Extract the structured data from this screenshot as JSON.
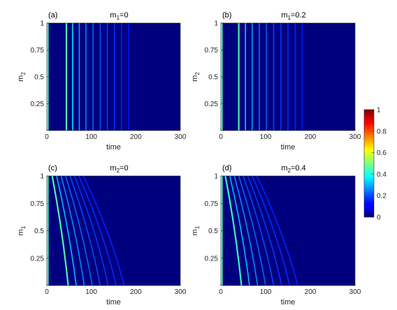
{
  "chart_data": [
    {
      "type": "heatmap",
      "panel": "(a)",
      "title_var": "m",
      "title_sub": "1",
      "title_val": "=0",
      "xlabel": "time",
      "ylabel_var": "m",
      "ylabel_sub": "2",
      "xlim": [
        0,
        300
      ],
      "ylim": [
        0,
        1
      ],
      "xticks": [
        "0",
        "100",
        "200",
        "300"
      ],
      "yticks": [
        "0.25",
        "0.5",
        "0.75",
        "1"
      ],
      "fronts": [
        {
          "t0": 44,
          "t1": 44,
          "amp": 0.34
        },
        {
          "t0": 58,
          "t1": 58,
          "amp": 0.24
        },
        {
          "t0": 73,
          "t1": 73,
          "amp": 0.18
        },
        {
          "t0": 88,
          "t1": 88,
          "amp": 0.14
        },
        {
          "t0": 104,
          "t1": 104,
          "amp": 0.11
        },
        {
          "t0": 120,
          "t1": 120,
          "amp": 0.09
        },
        {
          "t0": 136,
          "t1": 136,
          "amp": 0.07
        },
        {
          "t0": 152,
          "t1": 152,
          "amp": 0.05
        },
        {
          "t0": 168,
          "t1": 168,
          "amp": 0.04
        },
        {
          "t0": 184,
          "t1": 184,
          "amp": 0.03
        }
      ]
    },
    {
      "type": "heatmap",
      "panel": "(b)",
      "title_var": "m",
      "title_sub": "1",
      "title_val": "=0.2",
      "xlabel": "time",
      "ylabel_var": "m",
      "ylabel_sub": "2",
      "xlim": [
        0,
        300
      ],
      "ylim": [
        0,
        1
      ],
      "xticks": [
        "0",
        "100",
        "200",
        "300"
      ],
      "yticks": [
        "0.25",
        "0.5",
        "0.75",
        "1"
      ],
      "fronts": [
        {
          "t0": 40,
          "t1": 40,
          "amp": 0.34
        },
        {
          "t0": 55,
          "t1": 55,
          "amp": 0.22
        },
        {
          "t0": 70,
          "t1": 70,
          "amp": 0.17
        },
        {
          "t0": 86,
          "t1": 86,
          "amp": 0.13
        },
        {
          "t0": 102,
          "t1": 102,
          "amp": 0.1
        },
        {
          "t0": 118,
          "t1": 118,
          "amp": 0.08
        },
        {
          "t0": 134,
          "t1": 134,
          "amp": 0.06
        },
        {
          "t0": 150,
          "t1": 150,
          "amp": 0.05
        },
        {
          "t0": 166,
          "t1": 166,
          "amp": 0.04
        },
        {
          "t0": 182,
          "t1": 182,
          "amp": 0.03
        }
      ]
    },
    {
      "type": "heatmap",
      "panel": "(c)",
      "title_var": "m",
      "title_sub": "2",
      "title_val": "=0",
      "xlabel": "time",
      "ylabel_var": "m",
      "ylabel_sub": "1",
      "xlim": [
        0,
        300
      ],
      "ylim": [
        0,
        1
      ],
      "xticks": [
        "0",
        "100",
        "200",
        "300"
      ],
      "yticks": [
        "0.25",
        "0.5",
        "0.75",
        "1"
      ],
      "fronts": [
        {
          "t0": 48,
          "t1": 12,
          "amp": 0.34
        },
        {
          "t0": 66,
          "t1": 22,
          "amp": 0.2
        },
        {
          "t0": 84,
          "t1": 32,
          "amp": 0.15
        },
        {
          "t0": 102,
          "t1": 42,
          "amp": 0.11
        },
        {
          "t0": 120,
          "t1": 52,
          "amp": 0.08
        },
        {
          "t0": 138,
          "t1": 62,
          "amp": 0.06
        },
        {
          "t0": 156,
          "t1": 72,
          "amp": 0.05
        },
        {
          "t0": 174,
          "t1": 82,
          "amp": 0.04
        }
      ]
    },
    {
      "type": "heatmap",
      "panel": "(d)",
      "title_var": "m",
      "title_sub": "2",
      "title_val": "=0.4",
      "xlabel": "time",
      "ylabel_var": "m",
      "ylabel_sub": "1",
      "xlim": [
        0,
        300
      ],
      "ylim": [
        0,
        1
      ],
      "xticks": [
        "0",
        "100",
        "200",
        "300"
      ],
      "yticks": [
        "0.25",
        "0.5",
        "0.75",
        "1"
      ],
      "fronts": [
        {
          "t0": 46,
          "t1": 10,
          "amp": 0.32
        },
        {
          "t0": 64,
          "t1": 20,
          "amp": 0.2
        },
        {
          "t0": 82,
          "t1": 30,
          "amp": 0.15
        },
        {
          "t0": 100,
          "t1": 40,
          "amp": 0.11
        },
        {
          "t0": 118,
          "t1": 50,
          "amp": 0.08
        },
        {
          "t0": 136,
          "t1": 60,
          "amp": 0.06
        },
        {
          "t0": 154,
          "t1": 70,
          "amp": 0.05
        },
        {
          "t0": 172,
          "t1": 80,
          "amp": 0.04
        }
      ]
    }
  ],
  "colorbar": {
    "colormap": "jet",
    "range": [
      0,
      1
    ],
    "ticks": [
      "0",
      "0.2",
      "0.4",
      "0.6",
      "0.8",
      "1"
    ],
    "tick_values": [
      0,
      0.2,
      0.4,
      0.6,
      0.8,
      1
    ]
  },
  "colors": {
    "background": "#00007f",
    "axis": "#262626"
  }
}
